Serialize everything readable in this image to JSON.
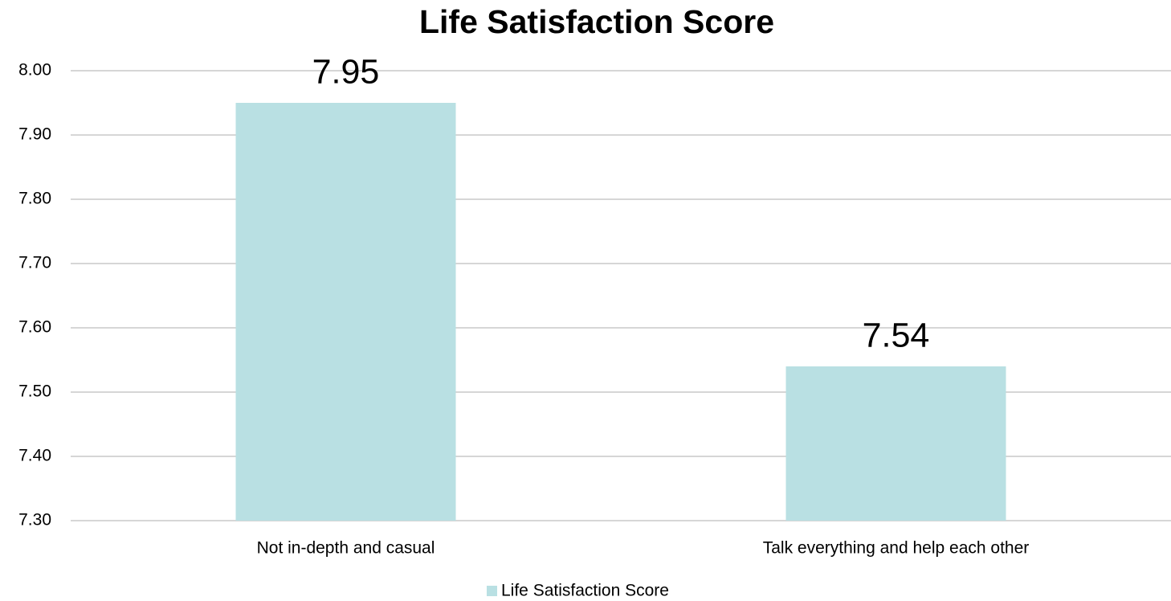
{
  "chart_data": {
    "type": "bar",
    "title": "Life Satisfaction Score",
    "categories": [
      "Not in-depth and casual",
      "Talk everything and help each other"
    ],
    "series": [
      {
        "name": "Life Satisfaction Score",
        "color": "#b9e0e3",
        "values": [
          7.95,
          7.54
        ]
      }
    ],
    "ylim": [
      7.3,
      8.0
    ],
    "yticks": [
      {
        "value": 7.3,
        "label": "7.30"
      },
      {
        "value": 7.4,
        "label": "7.40"
      },
      {
        "value": 7.5,
        "label": "7.50"
      },
      {
        "value": 7.6,
        "label": "7.60"
      },
      {
        "value": 7.7,
        "label": "7.70"
      },
      {
        "value": 7.8,
        "label": "7.80"
      },
      {
        "value": 7.9,
        "label": "7.90"
      },
      {
        "value": 8.0,
        "label": "8.00"
      }
    ],
    "grid": true,
    "legend": "bottom"
  }
}
